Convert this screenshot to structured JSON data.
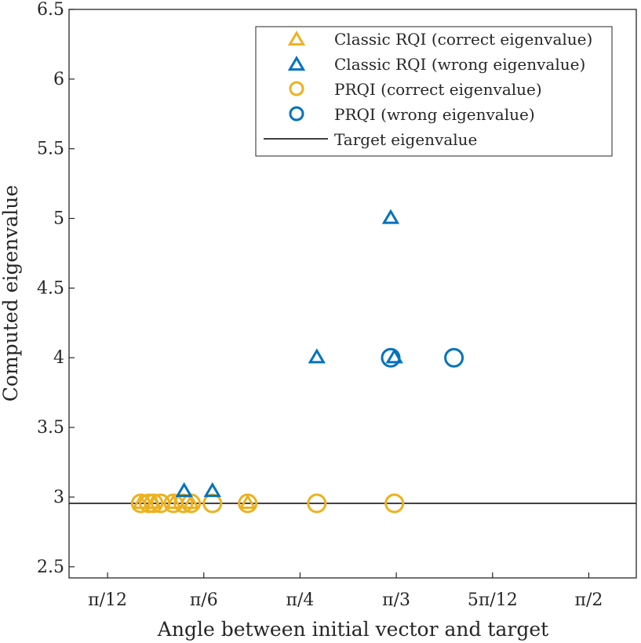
{
  "chart_data": {
    "type": "scatter",
    "title": "",
    "xlabel": "Angle between initial vector and target",
    "ylabel": "Computed eigenvalue",
    "xlim": [
      0.157,
      1.7
    ],
    "ylim": [
      2.42,
      6.5
    ],
    "grid": false,
    "legend_position": "top-right",
    "x_ticks": [
      {
        "value": 0.2618,
        "label": "π/12"
      },
      {
        "value": 0.5236,
        "label": "π/6"
      },
      {
        "value": 0.7854,
        "label": "π/4"
      },
      {
        "value": 1.0472,
        "label": "π/3"
      },
      {
        "value": 1.309,
        "label": "5π/12"
      },
      {
        "value": 1.5708,
        "label": "π/2"
      }
    ],
    "y_ticks": [
      {
        "value": 2.5,
        "label": "2.5"
      },
      {
        "value": 3,
        "label": "3"
      },
      {
        "value": 3.5,
        "label": "3.5"
      },
      {
        "value": 4,
        "label": "4"
      },
      {
        "value": 4.5,
        "label": "4.5"
      },
      {
        "value": 5,
        "label": "5"
      },
      {
        "value": 5.5,
        "label": "5.5"
      },
      {
        "value": 6,
        "label": "6"
      },
      {
        "value": 6.5,
        "label": "6.5"
      }
    ],
    "series": [
      {
        "name": "Classic RQI (correct eigenvalue)",
        "marker": "triangle",
        "color": "#EDB120",
        "points": [
          {
            "x": 0.352,
            "y": 2.955
          },
          {
            "x": 0.387,
            "y": 2.955
          },
          {
            "x": 0.441,
            "y": 2.955
          },
          {
            "x": 0.489,
            "y": 2.955
          },
          {
            "x": 0.643,
            "y": 2.955
          }
        ]
      },
      {
        "name": "Classic RQI (wrong eigenvalue)",
        "marker": "triangle",
        "color": "#0072BD",
        "points": [
          {
            "x": 0.47,
            "y": 3.04
          },
          {
            "x": 0.547,
            "y": 3.04
          },
          {
            "x": 0.831,
            "y": 4.0
          },
          {
            "x": 1.032,
            "y": 5.0
          },
          {
            "x": 1.042,
            "y": 4.0
          }
        ]
      },
      {
        "name": "PRQI (correct eigenvalue)",
        "marker": "circle",
        "color": "#EDB120",
        "points": [
          {
            "x": 0.352,
            "y": 2.955
          },
          {
            "x": 0.374,
            "y": 2.955
          },
          {
            "x": 0.387,
            "y": 2.955
          },
          {
            "x": 0.406,
            "y": 2.955
          },
          {
            "x": 0.441,
            "y": 2.955
          },
          {
            "x": 0.468,
            "y": 2.955
          },
          {
            "x": 0.489,
            "y": 2.955
          },
          {
            "x": 0.547,
            "y": 2.955
          },
          {
            "x": 0.643,
            "y": 2.955
          },
          {
            "x": 0.831,
            "y": 2.955
          },
          {
            "x": 1.042,
            "y": 2.955
          }
        ]
      },
      {
        "name": "PRQI (wrong eigenvalue)",
        "marker": "circle",
        "color": "#0072BD",
        "points": [
          {
            "x": 1.032,
            "y": 4.0
          },
          {
            "x": 1.204,
            "y": 4.0
          }
        ]
      }
    ],
    "reference_line": {
      "name": "Target eigenvalue",
      "y": 2.955,
      "color": "#000000"
    }
  }
}
